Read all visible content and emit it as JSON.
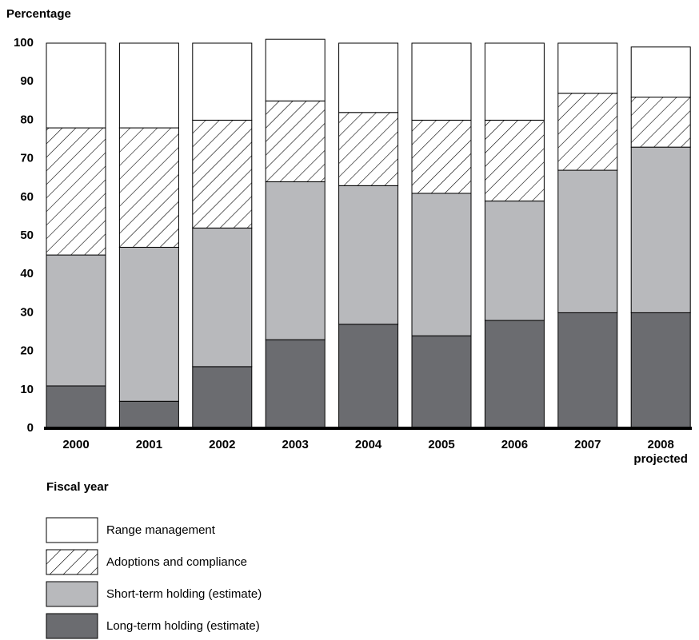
{
  "chart_data": {
    "type": "stacked_bar",
    "y_label": "Percentage",
    "x_label": "Fiscal year",
    "categories": [
      "2000",
      "2001",
      "2002",
      "2003",
      "2004",
      "2005",
      "2006",
      "2007",
      "2008 projected"
    ],
    "series": [
      {
        "name": "Long-term holding (estimate)",
        "color": "#6b6c70",
        "values": [
          11,
          7,
          16,
          23,
          27,
          24,
          28,
          30,
          30
        ]
      },
      {
        "name": "Short-term holding (estimate)",
        "color": "#b8b9bc",
        "values": [
          34,
          40,
          36,
          41,
          36,
          37,
          31,
          37,
          43
        ]
      },
      {
        "name": "Adoptions and compliance",
        "color": "#ffffff",
        "pattern": "hatch",
        "values": [
          33,
          31,
          28,
          21,
          19,
          19,
          21,
          20,
          13
        ]
      },
      {
        "name": "Range management",
        "color": "#ffffff",
        "values": [
          22,
          22,
          20,
          16,
          18,
          20,
          20,
          13,
          13
        ]
      }
    ],
    "ylim": [
      0,
      100
    ],
    "yticks": [
      0,
      10,
      20,
      30,
      40,
      50,
      60,
      70,
      80,
      90,
      100
    ],
    "grid": false
  }
}
